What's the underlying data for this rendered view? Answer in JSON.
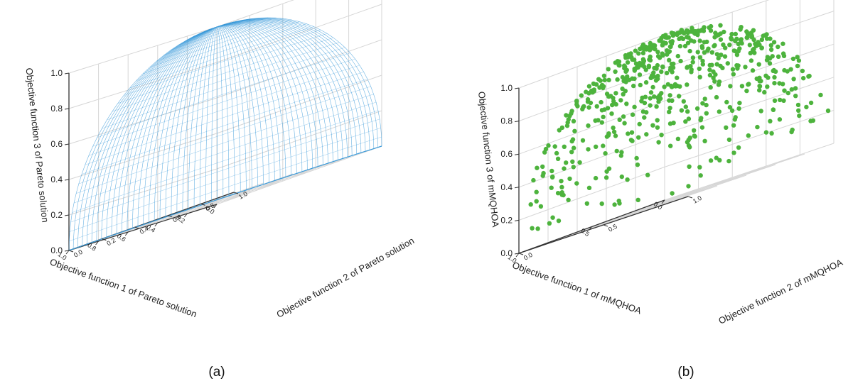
{
  "chart_data": [
    {
      "panel": "(a)",
      "type": "surface",
      "mark_color": "#3a9ad9",
      "xlabel": "Objective function 1 of Pareto solution",
      "ylabel": "Objective function 2 of Pareto solution",
      "zlabel": "Objective function 3 of Pareto solution",
      "x_ticks": [
        "0.0",
        "0.2",
        "0.4",
        "0.6",
        "0.8",
        "1.0"
      ],
      "y_ticks": [
        "0.0",
        "0.2",
        "0.4",
        "0.6",
        "0.8",
        "1.0"
      ],
      "z_ticks": [
        "0.0",
        "0.2",
        "0.4",
        "0.6",
        "0.8",
        "1.0"
      ],
      "xlim": [
        0,
        1
      ],
      "ylim": [
        0,
        1
      ],
      "zlim": [
        0,
        1
      ],
      "surface": "x^2 + y^2 + z^2 = 1, x,y,z >= 0",
      "grid": true
    },
    {
      "panel": "(b)",
      "type": "scatter",
      "mark_color": "#4db33d",
      "xlabel": "Objective function 1 of mMQHOA",
      "ylabel": "Objective function 2 of mMQHOA",
      "zlabel": "Objective function 3 of mMQHOA",
      "x_ticks": [
        "0.0",
        "0.5",
        "1.0"
      ],
      "y_ticks": [
        "0.0",
        "0.5",
        "1.0"
      ],
      "z_ticks": [
        "0.0",
        "0.2",
        "0.4",
        "0.6",
        "0.8",
        "1.0"
      ],
      "xlim": [
        0,
        1
      ],
      "ylim": [
        0,
        1
      ],
      "zlim": [
        0,
        1
      ],
      "points_approx": "~600 points on x^2 + y^2 + z^2 = 1, x,y,z >= 0",
      "grid": true
    }
  ],
  "captions": {
    "a": "(a)",
    "b": "(b)"
  }
}
